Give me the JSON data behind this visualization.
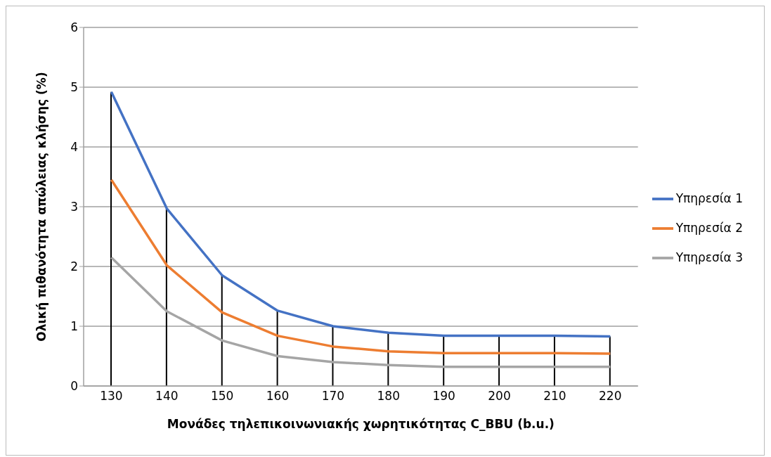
{
  "chart_data": {
    "type": "line",
    "xlabel": "Μονάδες τηλεπικοινωνιακής χωρητικότητας C_BBU (b.u.)",
    "ylabel": "Ολική πιθανότητα απώλειας κλήσης (%)",
    "categories": [
      "130",
      "140",
      "150",
      "160",
      "170",
      "180",
      "190",
      "200",
      "210",
      "220"
    ],
    "series": [
      {
        "type": "bar",
        "color": "#000000",
        "values": [
          4.92,
          2.97,
          1.85,
          1.26,
          1.0,
          0.89,
          0.84,
          0.84,
          0.84,
          0.83
        ]
      },
      {
        "name": "Υπηρεσία 1",
        "color": "#4472c4",
        "values": [
          4.92,
          2.97,
          1.85,
          1.26,
          1.0,
          0.89,
          0.84,
          0.84,
          0.84,
          0.83
        ]
      },
      {
        "name": "Υπηρεσία 2",
        "color": "#ed7d31",
        "values": [
          3.45,
          2.02,
          1.23,
          0.84,
          0.66,
          0.58,
          0.55,
          0.55,
          0.55,
          0.54
        ]
      },
      {
        "name": "Υπηρεσία 3",
        "color": "#a5a5a5",
        "values": [
          2.15,
          1.25,
          0.76,
          0.5,
          0.4,
          0.35,
          0.32,
          0.32,
          0.32,
          0.32
        ]
      }
    ],
    "ylim": [
      0,
      6
    ],
    "yticks": [
      0,
      1,
      2,
      3,
      4,
      5,
      6
    ],
    "grid": "y",
    "legend": "right",
    "marker": "none",
    "line_style": "solid"
  }
}
